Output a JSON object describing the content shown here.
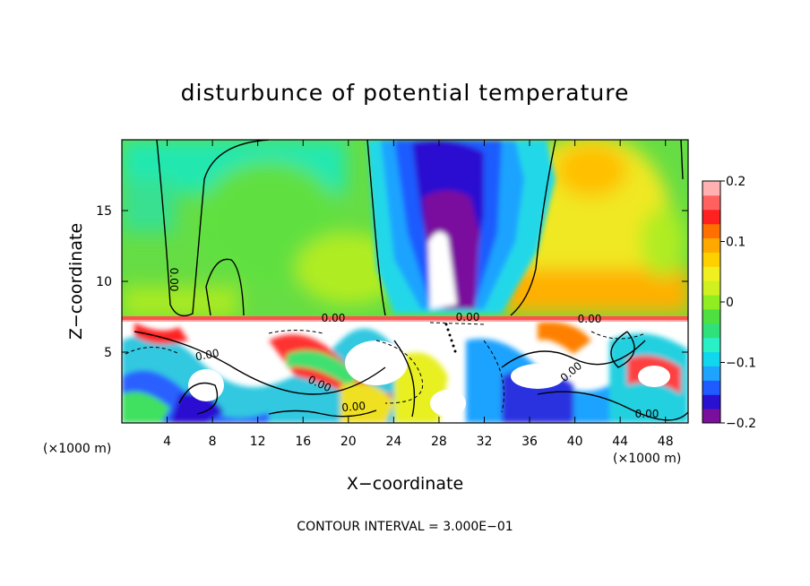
{
  "chart_data": {
    "type": "heatmap",
    "title": "disturbunce of potential temperature",
    "xlabel": "X−coordinate",
    "ylabel": "Z−coordinate",
    "x_unit": "(×1000 m)",
    "xlim": [
      0,
      50
    ],
    "ylim": [
      0,
      20
    ],
    "x_ticks": [
      4,
      8,
      12,
      16,
      20,
      24,
      28,
      32,
      36,
      40,
      44,
      48
    ],
    "y_ticks": [
      5,
      10,
      15
    ],
    "colorbar": {
      "range": [
        -0.2,
        0.2
      ],
      "ticks": [
        -0.2,
        -0.1,
        0,
        0.1,
        0.2
      ],
      "tick_labels": [
        "−0.2",
        "−0.1",
        "0",
        "0.1",
        "0.2"
      ],
      "colors": [
        "#7a0f9e",
        "#2a10d0",
        "#1f5cff",
        "#1ea3ff",
        "#10d6ee",
        "#2af0c8",
        "#30e07a",
        "#4de040",
        "#90ee20",
        "#d0f020",
        "#f0f020",
        "#ffd000",
        "#ffa800",
        "#ff7000",
        "#ff2020",
        "#ff6060",
        "#ffb0b0"
      ]
    },
    "contour_interval_text": "CONTOUR INTERVAL = 3.000E−01",
    "contour_labels": [
      "0.00",
      "0.00",
      "0.00",
      "0.00",
      "0.00",
      "0.00",
      "0.00",
      "0.00",
      "0.00"
    ],
    "features": {
      "inversion_height": 7.5,
      "cold_plume_center_x": 28,
      "cold_plume_top_z": 20,
      "background_upper": "green-yellow",
      "lower_layer": "turbulent mixed"
    }
  }
}
